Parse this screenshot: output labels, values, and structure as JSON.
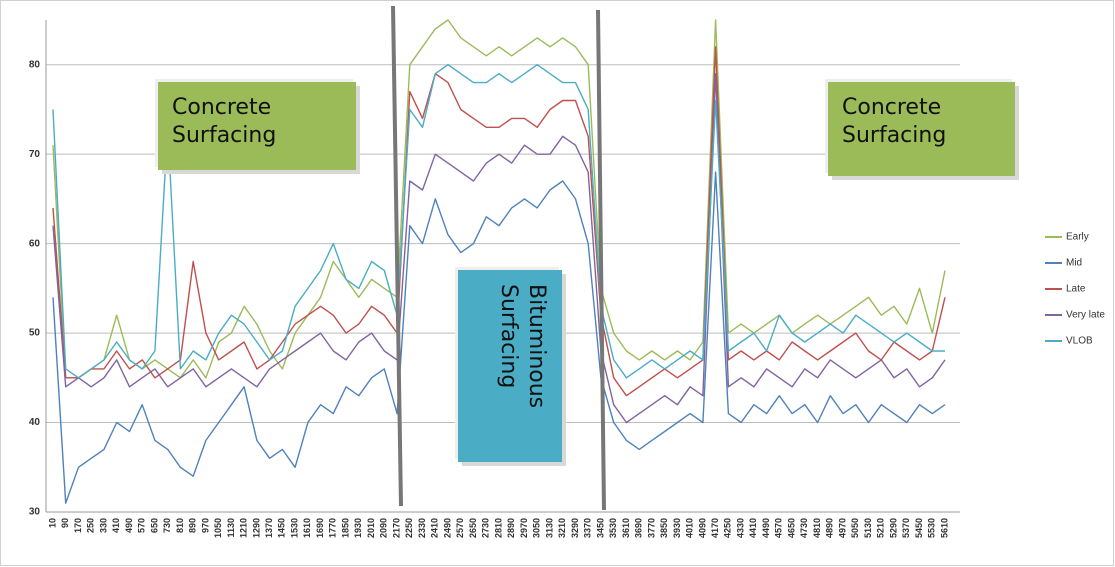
{
  "chart_data": {
    "type": "line",
    "annotations": [
      "Concrete Surfacing",
      "Bituminous Surfacing",
      "Concrete Surfacing"
    ],
    "categories": [
      10,
      90,
      170,
      250,
      330,
      410,
      490,
      570,
      650,
      730,
      810,
      890,
      970,
      1050,
      1130,
      1210,
      1290,
      1370,
      1450,
      1530,
      1610,
      1690,
      1770,
      1850,
      1930,
      2010,
      2090,
      2170,
      2250,
      2330,
      2410,
      2490,
      2570,
      2650,
      2730,
      2810,
      2890,
      2970,
      3050,
      3130,
      3210,
      3290,
      3370,
      3450,
      3530,
      3610,
      3690,
      3770,
      3850,
      3930,
      4010,
      4090,
      4170,
      4250,
      4330,
      4410,
      4490,
      4570,
      4650,
      4730,
      4810,
      4890,
      4970,
      5050,
      5130,
      5210,
      5290,
      5370,
      5450,
      5530,
      5610
    ],
    "ylim": [
      30,
      85
    ],
    "yticks": [
      30,
      40,
      50,
      60,
      70,
      80
    ],
    "grid": true,
    "legend": "right",
    "series": [
      {
        "name": "Early",
        "color": "#9bbb59",
        "values": [
          71,
          45,
          45,
          46,
          47,
          52,
          47,
          46,
          47,
          46,
          45,
          47,
          45,
          49,
          50,
          53,
          51,
          48,
          46,
          50,
          52,
          54,
          58,
          56,
          54,
          56,
          55,
          54,
          80,
          82,
          84,
          85,
          83,
          82,
          81,
          82,
          81,
          82,
          83,
          82,
          83,
          82,
          80,
          55,
          50,
          48,
          47,
          48,
          47,
          48,
          47,
          49,
          85,
          50,
          51,
          50,
          51,
          52,
          50,
          51,
          52,
          51,
          52,
          53,
          54,
          52,
          53,
          51,
          55,
          50,
          57
        ]
      },
      {
        "name": "Mid",
        "color": "#4f81bd",
        "values": [
          54,
          31,
          35,
          36,
          37,
          40,
          39,
          42,
          38,
          37,
          35,
          34,
          38,
          40,
          42,
          44,
          38,
          36,
          37,
          35,
          40,
          42,
          41,
          44,
          43,
          45,
          46,
          41,
          62,
          60,
          65,
          61,
          59,
          60,
          63,
          62,
          64,
          65,
          64,
          66,
          67,
          65,
          60,
          45,
          40,
          38,
          37,
          38,
          39,
          40,
          41,
          40,
          68,
          41,
          40,
          42,
          41,
          43,
          41,
          42,
          40,
          43,
          41,
          42,
          40,
          42,
          41,
          40,
          42,
          41,
          42
        ]
      },
      {
        "name": "Late",
        "color": "#c0504d",
        "values": [
          64,
          45,
          45,
          46,
          46,
          48,
          46,
          47,
          45,
          46,
          47,
          58,
          50,
          47,
          48,
          49,
          46,
          47,
          49,
          51,
          52,
          53,
          52,
          50,
          51,
          53,
          52,
          50,
          77,
          74,
          79,
          78,
          75,
          74,
          73,
          73,
          74,
          74,
          73,
          75,
          76,
          76,
          72,
          52,
          45,
          43,
          44,
          45,
          46,
          45,
          46,
          47,
          82,
          47,
          48,
          47,
          48,
          47,
          49,
          48,
          47,
          48,
          49,
          50,
          48,
          47,
          49,
          48,
          47,
          48,
          54
        ]
      },
      {
        "name": "Very late",
        "color": "#8064a2",
        "values": [
          62,
          44,
          45,
          44,
          45,
          47,
          44,
          45,
          46,
          44,
          45,
          46,
          44,
          45,
          46,
          45,
          44,
          46,
          47,
          48,
          49,
          50,
          48,
          47,
          49,
          50,
          48,
          47,
          67,
          66,
          70,
          69,
          68,
          67,
          69,
          70,
          69,
          71,
          70,
          70,
          72,
          71,
          68,
          48,
          42,
          40,
          41,
          42,
          43,
          42,
          44,
          43,
          79,
          44,
          45,
          44,
          46,
          45,
          44,
          46,
          45,
          47,
          46,
          45,
          46,
          47,
          45,
          46,
          44,
          45,
          47
        ]
      },
      {
        "name": "VLOB",
        "color": "#4bacc6",
        "values": [
          75,
          46,
          45,
          46,
          47,
          49,
          47,
          46,
          48,
          73,
          46,
          48,
          47,
          50,
          52,
          51,
          49,
          47,
          48,
          53,
          55,
          57,
          60,
          56,
          55,
          58,
          57,
          52,
          75,
          73,
          79,
          80,
          79,
          78,
          78,
          79,
          78,
          79,
          80,
          79,
          78,
          78,
          75,
          53,
          47,
          45,
          46,
          47,
          46,
          47,
          48,
          47,
          76,
          48,
          49,
          50,
          48,
          52,
          50,
          49,
          50,
          51,
          50,
          52,
          51,
          50,
          49,
          50,
          49,
          48,
          48
        ]
      }
    ]
  }
}
